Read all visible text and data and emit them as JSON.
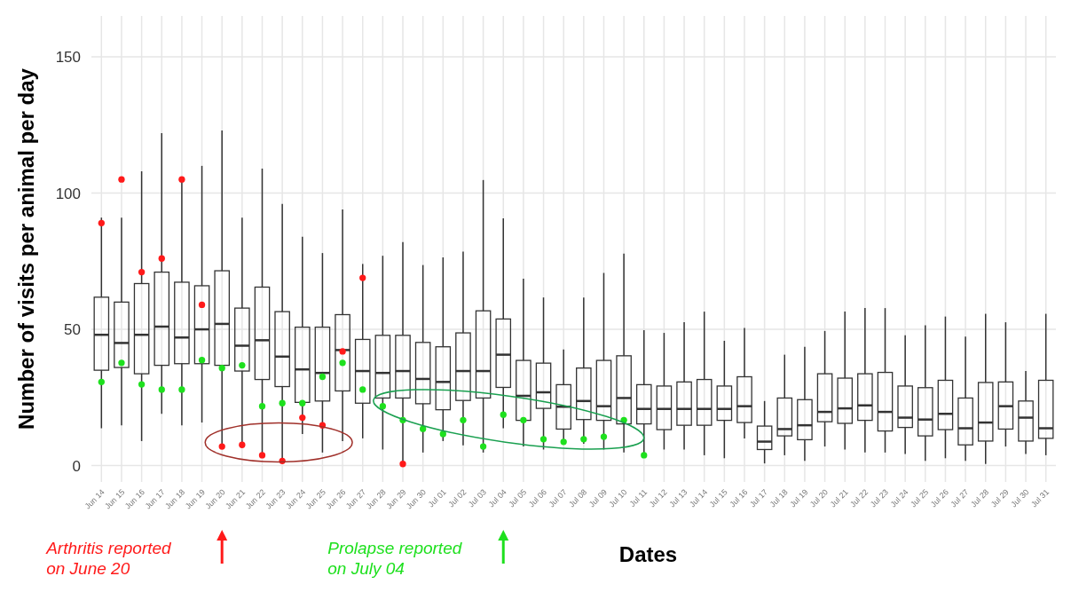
{
  "chart_data": {
    "type": "box",
    "xlabel": "Dates",
    "ylabel": "Number of visits per animal per day",
    "categories": [
      "Jun 14",
      "Jun 15",
      "Jun 16",
      "Jun 17",
      "Jun 18",
      "Jun 19",
      "Jun 20",
      "Jun 21",
      "Jun 22",
      "Jun 23",
      "Jun 24",
      "Jun 25",
      "Jun 26",
      "Jun 27",
      "Jun 28",
      "Jun 29",
      "Jun 30",
      "Jul 01",
      "Jul 02",
      "Jul 03",
      "Jul 04",
      "Jul 05",
      "Jul 06",
      "Jul 07",
      "Jul 08",
      "Jul 09",
      "Jul 10",
      "Jul 11",
      "Jul 12",
      "Jul 13",
      "Jul 14",
      "Jul 15",
      "Jul 16",
      "Jul 17",
      "Jul 18",
      "Jul 19",
      "Jul 20",
      "Jul 21",
      "Jul 22",
      "Jul 23",
      "Jul 24",
      "Jul 25",
      "Jul 26",
      "Jul 27",
      "Jul 28",
      "Jul 29",
      "Jul 30",
      "Jul 31"
    ],
    "ylim": [
      -6,
      165
    ],
    "yticks": [
      0,
      50,
      100,
      150
    ],
    "grid": true,
    "marker": "circle",
    "series": [
      {
        "type": "box",
        "color": "#333333",
        "boxes": [
          {
            "low": 13.7,
            "q1": 35,
            "median": 48,
            "q3": 61.8,
            "high": 91
          },
          {
            "low": 14.8,
            "q1": 36,
            "median": 45,
            "q3": 60,
            "high": 91
          },
          {
            "low": 9,
            "q1": 33.7,
            "median": 48,
            "q3": 66.8,
            "high": 108
          },
          {
            "low": 19,
            "q1": 36.8,
            "median": 51,
            "q3": 71,
            "high": 122
          },
          {
            "low": 14.8,
            "q1": 37.4,
            "median": 47,
            "q3": 67.3,
            "high": 105
          },
          {
            "low": 15.8,
            "q1": 37.4,
            "median": 50,
            "q3": 66,
            "high": 110
          },
          {
            "low": 7,
            "q1": 36.8,
            "median": 52,
            "q3": 71.5,
            "high": 123
          },
          {
            "low": 7.4,
            "q1": 34.7,
            "median": 44,
            "q3": 57.8,
            "high": 91
          },
          {
            "low": 3.8,
            "q1": 31.6,
            "median": 46,
            "q3": 65.5,
            "high": 109
          },
          {
            "low": 1.7,
            "q1": 29,
            "median": 40,
            "q3": 56.5,
            "high": 96
          },
          {
            "low": 11.6,
            "q1": 23.2,
            "median": 35.3,
            "q3": 50.8,
            "high": 84
          },
          {
            "low": 4.8,
            "q1": 23.7,
            "median": 34,
            "q3": 50.8,
            "high": 78
          },
          {
            "low": 9,
            "q1": 27.4,
            "median": 42.4,
            "q3": 55.4,
            "high": 94
          },
          {
            "low": 10,
            "q1": 22.9,
            "median": 34.7,
            "q3": 46.3,
            "high": 74
          },
          {
            "low": 5.9,
            "q1": 24.8,
            "median": 34,
            "q3": 47.8,
            "high": 77
          },
          {
            "low": 0.6,
            "q1": 24.8,
            "median": 34.7,
            "q3": 47.8,
            "high": 82
          },
          {
            "low": 4.8,
            "q1": 22.7,
            "median": 31.8,
            "q3": 45.2,
            "high": 73.6
          },
          {
            "low": 9,
            "q1": 20.5,
            "median": 30.7,
            "q3": 43.6,
            "high": 76.4
          },
          {
            "low": 7.4,
            "q1": 23.9,
            "median": 34.7,
            "q3": 48.7,
            "high": 78.5
          },
          {
            "low": 4.8,
            "q1": 24.8,
            "median": 34.7,
            "q3": 56.8,
            "high": 104.8
          },
          {
            "low": 13.7,
            "q1": 28.7,
            "median": 40.7,
            "q3": 53.8,
            "high": 90.7
          },
          {
            "low": 7,
            "q1": 16.6,
            "median": 25.6,
            "q3": 38.6,
            "high": 68.6
          },
          {
            "low": 5.9,
            "q1": 21,
            "median": 26.9,
            "q3": 37.6,
            "high": 61.7
          },
          {
            "low": 8,
            "q1": 13.4,
            "median": 21.6,
            "q3": 29.7,
            "high": 42.6
          },
          {
            "low": 8,
            "q1": 16.9,
            "median": 23.7,
            "q3": 35.8,
            "high": 61.7
          },
          {
            "low": 5.9,
            "q1": 16.6,
            "median": 21.8,
            "q3": 38.6,
            "high": 70.7
          },
          {
            "low": 4.8,
            "q1": 15.3,
            "median": 24.8,
            "q3": 40.3,
            "high": 77.8
          },
          {
            "low": 3.8,
            "q1": 15.3,
            "median": 20.8,
            "q3": 29.7,
            "high": 49.7
          },
          {
            "low": 5.9,
            "q1": 13.2,
            "median": 20.8,
            "q3": 29.2,
            "high": 48.7
          },
          {
            "low": 5.9,
            "q1": 14.8,
            "median": 20.8,
            "q3": 30.7,
            "high": 52.6
          },
          {
            "low": 3.8,
            "q1": 14.8,
            "median": 20.8,
            "q3": 31.6,
            "high": 56.5
          },
          {
            "low": 2.7,
            "q1": 16.6,
            "median": 20.8,
            "q3": 29.2,
            "high": 45.8
          },
          {
            "low": 10,
            "q1": 15.8,
            "median": 21.8,
            "q3": 32.6,
            "high": 50.5
          },
          {
            "low": 0.8,
            "q1": 5.9,
            "median": 8.8,
            "q3": 14.5,
            "high": 23.7
          },
          {
            "low": 3.8,
            "q1": 10.9,
            "median": 13.4,
            "q3": 24.8,
            "high": 40.7
          },
          {
            "low": 1.7,
            "q1": 9.5,
            "median": 14.8,
            "q3": 24.2,
            "high": 43.6
          },
          {
            "low": 7,
            "q1": 16.1,
            "median": 19.7,
            "q3": 33.7,
            "high": 49.4
          },
          {
            "low": 5.9,
            "q1": 15.5,
            "median": 21,
            "q3": 32.1,
            "high": 56.5
          },
          {
            "low": 4.8,
            "q1": 16.6,
            "median": 22.1,
            "q3": 33.7,
            "high": 57.8
          },
          {
            "low": 4.8,
            "q1": 12.7,
            "median": 19.7,
            "q3": 34.2,
            "high": 57.8
          },
          {
            "low": 4.3,
            "q1": 14,
            "median": 17.6,
            "q3": 29.2,
            "high": 47.8
          },
          {
            "low": 1.7,
            "q1": 10.9,
            "median": 16.9,
            "q3": 28.6,
            "high": 51.5
          },
          {
            "low": 2.7,
            "q1": 13.2,
            "median": 19,
            "q3": 31.3,
            "high": 54.7
          },
          {
            "low": 1.7,
            "q1": 7.6,
            "median": 13.7,
            "q3": 24.8,
            "high": 47.3
          },
          {
            "low": 0.6,
            "q1": 9,
            "median": 15.8,
            "q3": 30.5,
            "high": 55.7
          },
          {
            "low": 7,
            "q1": 13.4,
            "median": 21.8,
            "q3": 30.7,
            "high": 52.6
          },
          {
            "low": 4.3,
            "q1": 9,
            "median": 17.6,
            "q3": 23.7,
            "high": 34.7
          },
          {
            "low": 3.8,
            "q1": 10,
            "median": 13.7,
            "q3": 31.3,
            "high": 55.7
          }
        ]
      },
      {
        "type": "scatter",
        "color": "#ff1a1a",
        "values": [
          89,
          105,
          71,
          76,
          105,
          59,
          7,
          7.6,
          3.8,
          1.7,
          17.6,
          14.8,
          41.9,
          68.9,
          null,
          0.6,
          null,
          null,
          null,
          null,
          null,
          null,
          null,
          null,
          null,
          null,
          null,
          null,
          null,
          null,
          null,
          null,
          null,
          null,
          null,
          null,
          null,
          null,
          null,
          null,
          null,
          null,
          null,
          null,
          null,
          null,
          null,
          null
        ]
      },
      {
        "type": "scatter",
        "color": "#1ee01e",
        "values": [
          30.7,
          37.7,
          29.8,
          27.9,
          27.9,
          38.7,
          35.8,
          36.8,
          21.8,
          22.9,
          22.9,
          32.6,
          37.7,
          27.9,
          21.8,
          16.7,
          13.5,
          11.6,
          16.7,
          7,
          18.7,
          16.7,
          9.7,
          8.7,
          9.7,
          10.6,
          16.7,
          3.8,
          null,
          null,
          null,
          null,
          null,
          null,
          null,
          null,
          null,
          null,
          null,
          null,
          null,
          null,
          null,
          null,
          null,
          null,
          null,
          null
        ]
      }
    ],
    "annotations": [
      "Arthritis reported on June 20",
      "Prolapse reported on July 04"
    ]
  }
}
